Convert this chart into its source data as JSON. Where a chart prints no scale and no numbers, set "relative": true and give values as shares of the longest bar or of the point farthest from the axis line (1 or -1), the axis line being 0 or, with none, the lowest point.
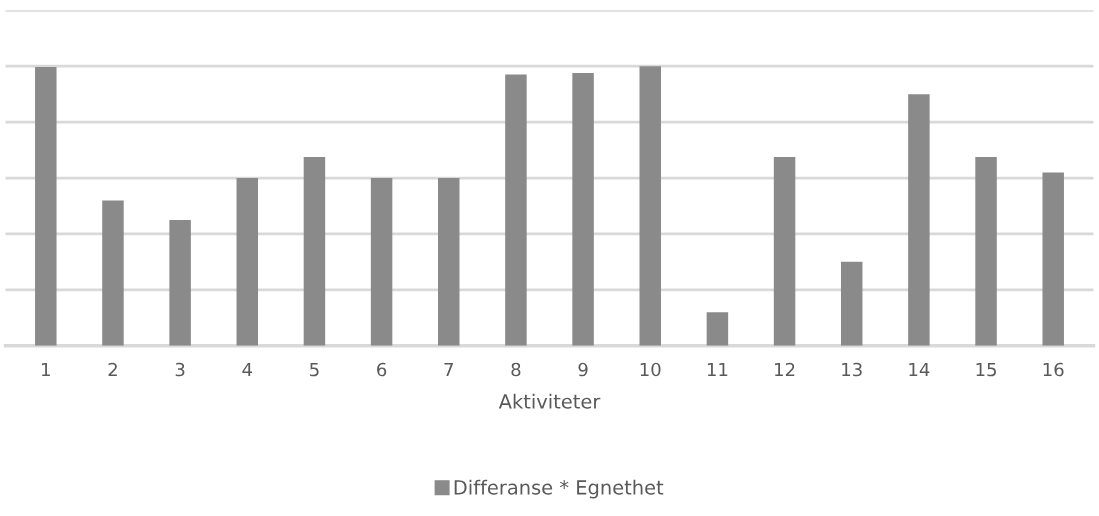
{
  "chart_data": {
    "type": "bar",
    "relative": true,
    "xlabel": "Aktiviteter",
    "categories": [
      "1",
      "2",
      "3",
      "4",
      "5",
      "6",
      "7",
      "8",
      "9",
      "10",
      "11",
      "12",
      "13",
      "14",
      "15",
      "16"
    ],
    "series": [
      {
        "name": "Differanse * Egnethet",
        "color": "#8a8a8a",
        "values": [
          0.997,
          0.52,
          0.45,
          0.6,
          0.675,
          0.6,
          0.6,
          0.97,
          0.976,
          1,
          0.12,
          0.675,
          0.3,
          0.9,
          0.675,
          0.62
        ]
      }
    ],
    "grid": "y",
    "legend": "bottom"
  }
}
